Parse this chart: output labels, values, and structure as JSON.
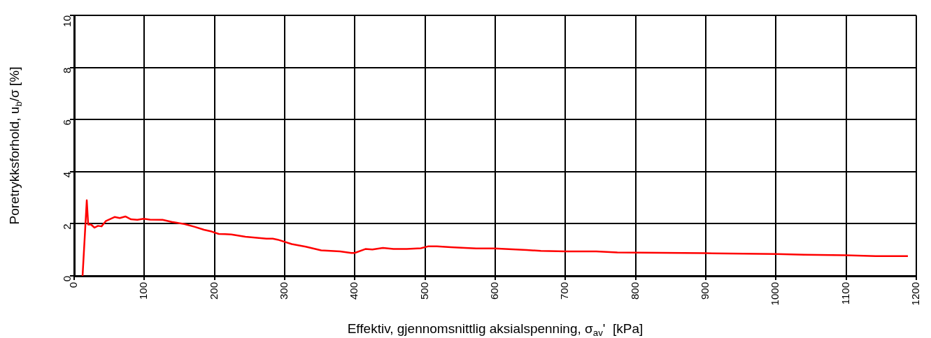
{
  "chart_data": {
    "type": "line",
    "xlabel": "Effektiv, gjennomsnittlig aksialspenning, σ$_{av}$'  [kPa]",
    "ylabel": "Poretrykksforhold, u$_{b}$/σ [%]",
    "xlim": [
      0,
      1200
    ],
    "xticks": [
      0,
      100,
      200,
      300,
      400,
      500,
      600,
      700,
      800,
      900,
      1000,
      1100,
      1200
    ],
    "ylim": [
      0,
      10
    ],
    "yticks": [
      0,
      2,
      4,
      6,
      8,
      10
    ],
    "grid": true,
    "legend": false,
    "marker": "none",
    "line_style": "solid",
    "series": [
      {
        "color": "#ff0000",
        "x": [
          12,
          18,
          20,
          24,
          29,
          34,
          39,
          45,
          58,
          65,
          73,
          81,
          90,
          99,
          108,
          126,
          139,
          157,
          172,
          185,
          196,
          206,
          215,
          224,
          244,
          274,
          283,
          290,
          310,
          330,
          352,
          379,
          395,
          400,
          415,
          425,
          440,
          455,
          474,
          494,
          504,
          517,
          537,
          557,
          573,
          599,
          645,
          665,
          701,
          744,
          774,
          899,
          1001,
          1040,
          1099,
          1142,
          1188
        ],
        "values": [
          0,
          2.9,
          1.97,
          1.97,
          1.85,
          1.92,
          1.9,
          2.1,
          2.26,
          2.22,
          2.28,
          2.17,
          2.15,
          2.19,
          2.16,
          2.15,
          2.07,
          1.99,
          1.88,
          1.77,
          1.7,
          1.61,
          1.6,
          1.59,
          1.5,
          1.43,
          1.43,
          1.39,
          1.22,
          1.12,
          0.98,
          0.94,
          0.88,
          0.88,
          1.03,
          1.01,
          1.07,
          1.03,
          1.03,
          1.06,
          1.13,
          1.13,
          1.1,
          1.07,
          1.05,
          1.05,
          0.99,
          0.96,
          0.94,
          0.94,
          0.9,
          0.87,
          0.84,
          0.81,
          0.79,
          0.76,
          0.76
        ]
      }
    ]
  }
}
